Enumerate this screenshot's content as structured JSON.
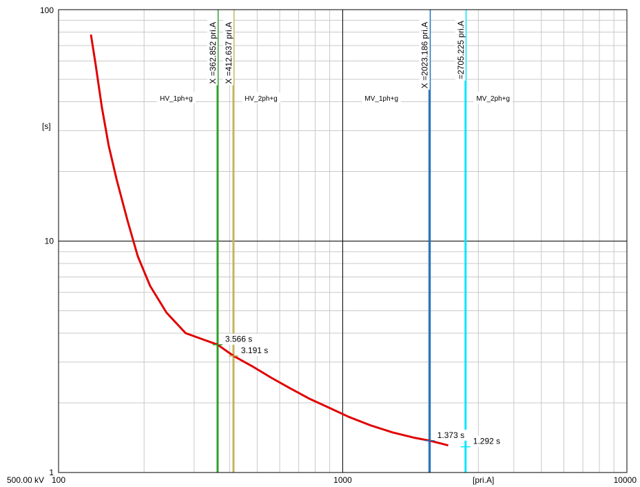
{
  "chart_data": {
    "type": "line",
    "xscale": "log",
    "yscale": "log",
    "xlim": [
      100,
      10000
    ],
    "ylim": [
      1,
      100
    ],
    "grid": true,
    "voltage_label": "500.00 kV",
    "xlabel": "[pri.A]",
    "ylabel": "[s]",
    "x_ticks": [
      {
        "value": 100,
        "label": "100"
      },
      {
        "value": 1000,
        "label": "1000"
      },
      {
        "value": 10000,
        "label": "10000"
      }
    ],
    "y_ticks": [
      {
        "value": 1,
        "label": "1"
      },
      {
        "value": 10,
        "label": "10"
      },
      {
        "value": 100,
        "label": "100"
      }
    ],
    "series": [
      {
        "color": "#e00000",
        "x": [
          130,
          135,
          142,
          150,
          160,
          175,
          190,
          210,
          240,
          280,
          320,
          362.852,
          412.637,
          480,
          560,
          650,
          760,
          900,
          1050,
          1250,
          1500,
          1800,
          2023.186,
          2200,
          2350
        ],
        "y": [
          78,
          58,
          38,
          26,
          18.5,
          12.2,
          8.6,
          6.4,
          4.9,
          4.0,
          3.77,
          3.566,
          3.191,
          2.88,
          2.57,
          2.32,
          2.09,
          1.9,
          1.74,
          1.6,
          1.49,
          1.41,
          1.373,
          1.338,
          1.31
        ]
      }
    ],
    "vertical_lines": [
      {
        "name": "HV_1ph+g",
        "x": 362.852,
        "label": "X =362.852 pri.A",
        "color": "#2ca02c",
        "intersection_y": 3.566,
        "intersection_label": "3.566 s"
      },
      {
        "name": "HV_2ph+g",
        "x": 412.637,
        "label": "X =412.637 pri.A",
        "color": "#c4b45c",
        "intersection_y": 3.191,
        "intersection_label": "3.191 s"
      },
      {
        "name": "MV_1ph+g",
        "x": 2023.186,
        "label": "X =2023.186 pri.A",
        "color": "#1f6fbf",
        "intersection_y": 1.373,
        "intersection_label": "1.373 s"
      },
      {
        "name": "MV_2ph+g",
        "x": 2705.225,
        "label": "=2705.225 pri.A",
        "color": "#00e5ff",
        "intersection_y": 1.292,
        "intersection_label": "1.292 s"
      }
    ]
  }
}
